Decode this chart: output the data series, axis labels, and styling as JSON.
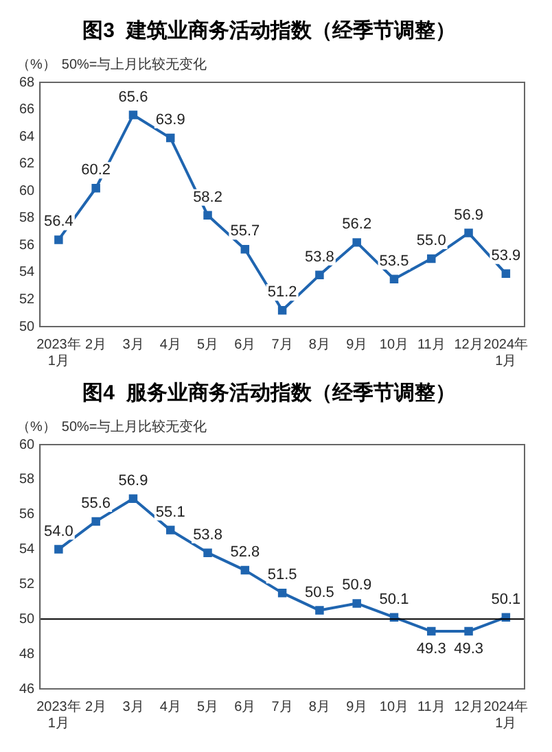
{
  "chart_data": [
    {
      "type": "line",
      "title": "图3  建筑业商务活动指数（经季节调整）",
      "ylabel": "（%）",
      "annotations": [
        "50%=与上月比较无变化"
      ],
      "categories": [
        "2023年\n1月",
        "2月",
        "3月",
        "4月",
        "5月",
        "6月",
        "7月",
        "8月",
        "9月",
        "10月",
        "11月",
        "12月",
        "2024年\n1月"
      ],
      "series": [
        {
          "color": "#1f65b0",
          "values": [
            56.4,
            60.2,
            65.6,
            63.9,
            58.2,
            55.7,
            51.2,
            53.8,
            56.2,
            53.5,
            55.0,
            56.9,
            53.9
          ],
          "value_labels": [
            "56.4",
            "60.2",
            "65.6",
            "63.9",
            "58.2",
            "55.7",
            "51.2",
            "53.8",
            "56.2",
            "53.5",
            "55.0",
            "56.9",
            "53.9"
          ]
        }
      ],
      "ylim": [
        50,
        68
      ],
      "yticks": [
        50,
        52,
        54,
        56,
        58,
        60,
        62,
        64,
        66,
        68
      ],
      "marker": "square",
      "grid": false,
      "legend": false
    },
    {
      "type": "line",
      "title": "图4  服务业商务活动指数（经季节调整）",
      "ylabel": "（%）",
      "annotations": [
        "50%=与上月比较无变化"
      ],
      "categories": [
        "2023年\n1月",
        "2月",
        "3月",
        "4月",
        "5月",
        "6月",
        "7月",
        "8月",
        "9月",
        "10月",
        "11月",
        "12月",
        "2024年\n1月"
      ],
      "series": [
        {
          "color": "#1f65b0",
          "values": [
            54.0,
            55.6,
            56.9,
            55.1,
            53.8,
            52.8,
            51.5,
            50.5,
            50.9,
            50.1,
            49.3,
            49.3,
            50.1
          ],
          "value_labels": [
            "54.0",
            "55.6",
            "56.9",
            "55.1",
            "53.8",
            "52.8",
            "51.5",
            "50.5",
            "50.9",
            "50.1",
            "49.3",
            "49.3",
            "50.1"
          ]
        }
      ],
      "ylim": [
        46,
        60
      ],
      "yticks": [
        46,
        48,
        50,
        52,
        54,
        56,
        58,
        60
      ],
      "ref_lines": [
        {
          "axis": "y",
          "value": 50,
          "color": "#000000"
        }
      ],
      "marker": "square",
      "grid": false,
      "legend": false
    }
  ]
}
